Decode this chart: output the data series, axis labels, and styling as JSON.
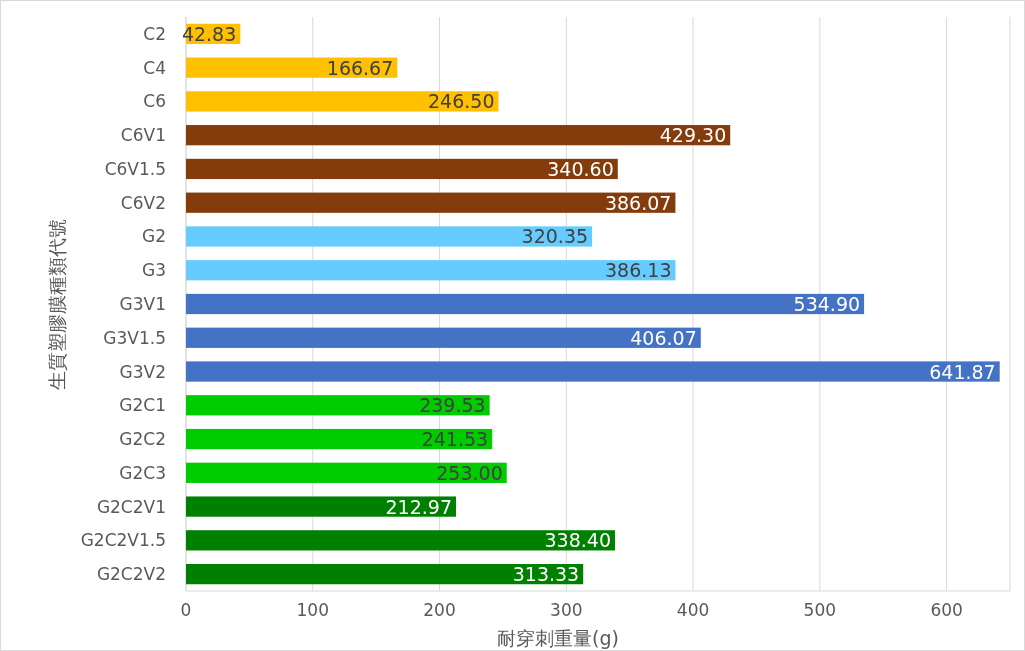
{
  "chart_data": {
    "type": "bar",
    "orientation": "horizontal",
    "xlabel": "耐穿刺重量(g)",
    "ylabel": "生質塑膠膜種類代號",
    "categories": [
      "C2",
      "C4",
      "C6",
      "C6V1",
      "C6V1.5",
      "C6V2",
      "G2",
      "G3",
      "G3V1",
      "G3V1.5",
      "G3V2",
      "G2C1",
      "G2C2",
      "G2C3",
      "G2C2V1",
      "G2C2V1.5",
      "G2C2V2"
    ],
    "values": [
      42.83,
      166.67,
      246.5,
      429.3,
      340.6,
      386.07,
      320.35,
      386.13,
      534.9,
      406.07,
      641.87,
      239.53,
      241.53,
      253,
      212.97,
      338.4,
      313.33
    ],
    "value_labels": [
      "42.83",
      "166.67",
      "246.50",
      "429.30",
      "340.60",
      "386.07",
      "320.35",
      "386.13",
      "534.90",
      "406.07",
      "641.87",
      "239.53",
      "241.53",
      "253.00",
      "212.97",
      "338.40",
      "313.33"
    ],
    "colors": [
      "#ffc000",
      "#ffc000",
      "#ffc000",
      "#843c0c",
      "#843c0c",
      "#843c0c",
      "#66ccff",
      "#66ccff",
      "#4472c4",
      "#4472c4",
      "#4472c4",
      "#00cc00",
      "#00cc00",
      "#00cc00",
      "#008000",
      "#008000",
      "#008000"
    ],
    "xlim": [
      0,
      650
    ],
    "xticks": [
      0,
      100,
      200,
      300,
      400,
      500,
      600
    ],
    "grid": "x"
  }
}
